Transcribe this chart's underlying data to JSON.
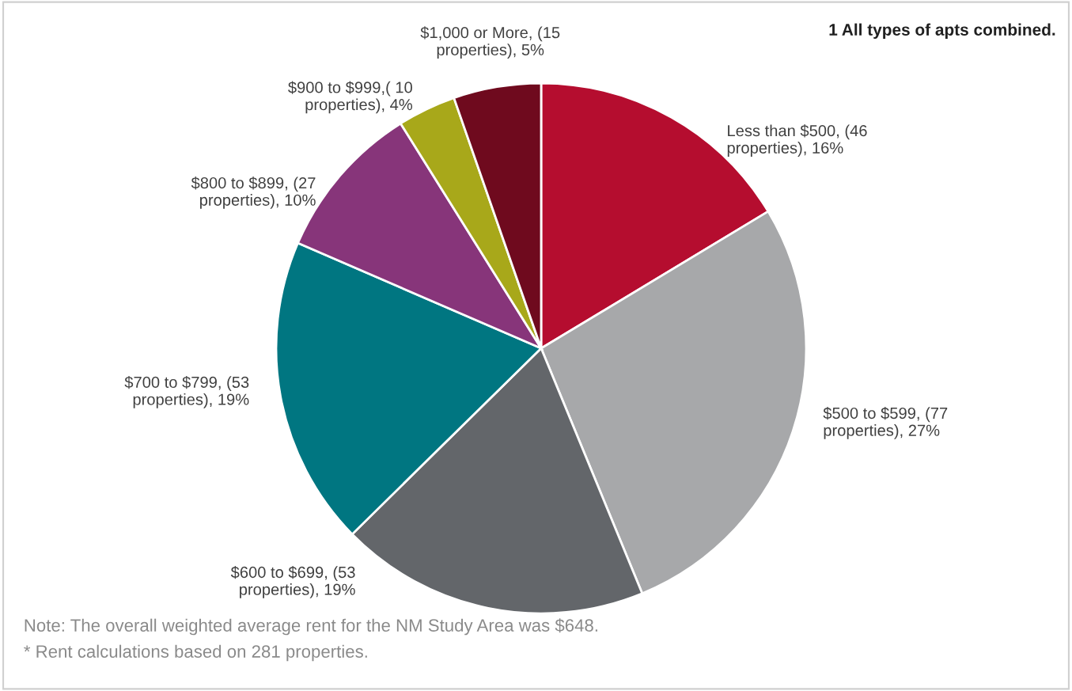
{
  "chart_data": {
    "type": "pie",
    "title": "1 All types of apts combined.",
    "categories": [
      "Less than $500, (46\nproperties), 16%",
      "$500 to $599, (77\nproperties), 27%",
      "$600 to $699, (53\nproperties), 19%",
      "$700 to $799, (53\nproperties), 19%",
      "$800 to $899, (27\nproperties), 10%",
      "$900 to $999,( 10\nproperties), 4%",
      "$1,000 or More, (15\nproperties), 5%"
    ],
    "values": [
      46,
      77,
      53,
      53,
      27,
      10,
      15
    ],
    "colors": [
      "#b50d2f",
      "#a7a8aa",
      "#63666a",
      "#007681",
      "#87357a",
      "#a8a81a",
      "#6f0a1e"
    ],
    "annotations": [
      "Note: The overall weighted average rent for the NM Study Area was $648.",
      "* Rent calculations based on 281 properties."
    ]
  }
}
